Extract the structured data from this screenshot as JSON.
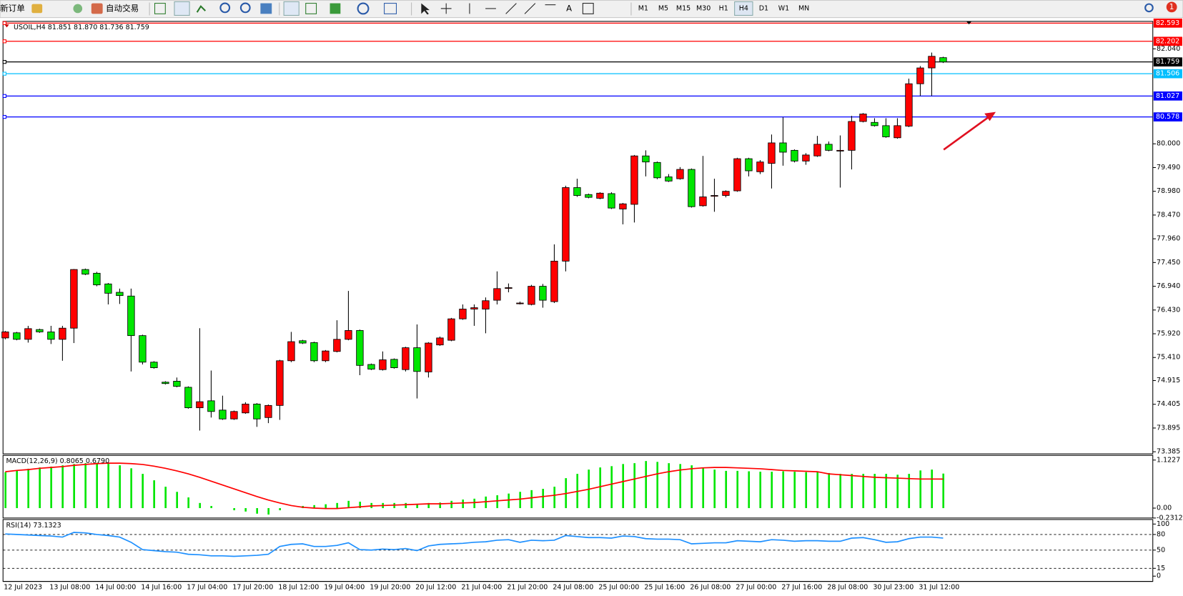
{
  "toolbar": {
    "new_order": "新订单",
    "auto_trading": "自动交易",
    "text_tool": "A",
    "notifications": 1,
    "timeframes": [
      {
        "label": "M1"
      },
      {
        "label": "M5"
      },
      {
        "label": "M15"
      },
      {
        "label": "M30"
      },
      {
        "label": "H1"
      },
      {
        "label": "H4",
        "active": true
      },
      {
        "label": "D1"
      },
      {
        "label": "W1"
      },
      {
        "label": "MN"
      }
    ]
  },
  "chart_data": [
    {
      "type": "candlestick",
      "title": "USOIL,H4  81.851 81.870 81.736 81.759",
      "up_color": "#ff0000",
      "down_color": "#00e600",
      "categories": [
        "12 Jul 2023",
        null,
        null,
        null,
        "13 Jul 08:00",
        null,
        null,
        null,
        "14 Jul 00:00",
        null,
        null,
        null,
        "14 Jul 16:00",
        null,
        null,
        null,
        "17 Jul 04:00",
        null,
        null,
        null,
        "17 Jul 20:00",
        null,
        null,
        null,
        "18 Jul 12:00",
        null,
        null,
        null,
        "19 Jul 04:00",
        null,
        null,
        null,
        "19 Jul 20:00",
        null,
        null,
        null,
        "20 Jul 12:00",
        null,
        null,
        null,
        "21 Jul 04:00",
        null,
        null,
        null,
        "21 Jul 20:00",
        null,
        null,
        null,
        "24 Jul 08:00",
        null,
        null,
        null,
        "25 Jul 00:00",
        null,
        null,
        null,
        "25 Jul 16:00",
        null,
        null,
        null,
        "26 Jul 08:00",
        null,
        null,
        null,
        "27 Jul 00:00",
        null,
        null,
        null,
        "27 Jul 16:00",
        null,
        null,
        null,
        "28 Jul 08:00",
        null,
        null,
        null,
        "30 Jul 23:00",
        null,
        null,
        null,
        "31 Jul 12:00",
        null,
        null
      ],
      "open": [
        75.83,
        75.94,
        75.8,
        76.01,
        75.96,
        75.8,
        76.04,
        77.3,
        77.22,
        76.99,
        76.81,
        76.73,
        75.88,
        75.31,
        74.88,
        74.9,
        74.77,
        74.33,
        74.48,
        74.28,
        74.09,
        74.22,
        74.41,
        74.12,
        74.38,
        75.34,
        75.77,
        75.73,
        75.34,
        75.54,
        75.8,
        75.99,
        75.26,
        75.15,
        75.37,
        75.15,
        75.62,
        75.1,
        75.68,
        75.78,
        76.24,
        76.45,
        76.45,
        76.64,
        76.91,
        76.58,
        76.55,
        76.94,
        76.61,
        77.48,
        79.06,
        78.91,
        78.83,
        78.93,
        78.6,
        78.7,
        79.74,
        79.6,
        79.29,
        79.25,
        79.45,
        78.67,
        78.89,
        78.89,
        78.99,
        79.68,
        79.4,
        79.58,
        80.02,
        79.86,
        79.63,
        79.74,
        79.99,
        79.86,
        79.86,
        80.48,
        80.46,
        80.39,
        80.13,
        80.38,
        81.29,
        81.63,
        81.851
      ],
      "high": [
        75.98,
        75.96,
        76.09,
        76.03,
        76.09,
        76.09,
        77.31,
        77.32,
        77.25,
        77.01,
        76.89,
        76.89,
        75.9,
        75.33,
        74.9,
        74.98,
        74.79,
        76.04,
        75.13,
        74.59,
        74.27,
        74.45,
        74.43,
        74.4,
        75.36,
        75.96,
        75.79,
        75.75,
        75.57,
        76.21,
        76.84,
        76.01,
        75.28,
        75.54,
        75.39,
        75.64,
        76.12,
        75.74,
        75.86,
        76.26,
        76.55,
        76.55,
        76.7,
        77.26,
        77.0,
        76.61,
        76.97,
        76.99,
        77.84,
        79.1,
        79.25,
        78.93,
        78.96,
        78.96,
        78.73,
        79.76,
        79.86,
        79.62,
        79.35,
        79.5,
        79.47,
        79.74,
        79.25,
        79.0,
        79.7,
        79.7,
        79.65,
        80.2,
        80.57,
        79.88,
        79.8,
        80.17,
        80.05,
        80.18,
        80.6,
        80.66,
        80.55,
        80.55,
        80.55,
        81.4,
        81.67,
        81.96,
        81.87
      ],
      "low": [
        75.8,
        75.78,
        75.73,
        75.94,
        75.7,
        75.34,
        75.72,
        77.18,
        76.94,
        76.55,
        76.56,
        75.11,
        75.26,
        75.17,
        74.83,
        74.77,
        74.31,
        73.84,
        74.12,
        74.07,
        74.07,
        74.2,
        73.92,
        74.0,
        74.07,
        75.31,
        75.7,
        75.31,
        75.31,
        75.52,
        75.78,
        75.03,
        75.14,
        75.13,
        75.17,
        75.11,
        74.53,
        74.98,
        75.66,
        75.76,
        76.22,
        76.09,
        75.93,
        76.55,
        76.81,
        76.55,
        76.53,
        76.48,
        76.58,
        77.26,
        78.86,
        78.83,
        78.81,
        78.6,
        78.27,
        78.31,
        79.3,
        79.24,
        79.18,
        79.23,
        78.63,
        78.65,
        78.54,
        78.85,
        78.97,
        79.3,
        79.35,
        79.04,
        79.53,
        79.6,
        79.55,
        79.72,
        79.84,
        79.06,
        79.45,
        80.46,
        80.37,
        80.13,
        80.11,
        80.36,
        81.03,
        81.03,
        81.736
      ],
      "close": [
        75.96,
        75.8,
        76.03,
        75.96,
        75.8,
        76.04,
        77.3,
        77.2,
        76.97,
        76.79,
        76.74,
        75.88,
        75.31,
        75.19,
        74.85,
        74.79,
        74.33,
        74.46,
        74.25,
        74.09,
        74.25,
        74.41,
        74.09,
        74.38,
        75.34,
        75.75,
        75.72,
        75.34,
        75.55,
        75.8,
        75.99,
        75.24,
        75.16,
        75.36,
        75.19,
        75.62,
        75.11,
        75.72,
        75.83,
        76.24,
        76.45,
        76.48,
        76.63,
        76.89,
        76.91,
        76.58,
        76.94,
        76.64,
        77.48,
        79.06,
        78.89,
        78.85,
        78.94,
        78.62,
        78.71,
        79.74,
        79.61,
        79.27,
        79.2,
        79.45,
        78.65,
        78.86,
        78.89,
        78.98,
        79.68,
        79.42,
        79.61,
        80.02,
        79.82,
        79.63,
        79.76,
        79.99,
        79.86,
        79.86,
        80.48,
        80.64,
        80.39,
        80.15,
        80.39,
        81.29,
        81.63,
        81.88,
        81.759
      ],
      "price_lines": [
        {
          "value": 82.593,
          "color": "#ff0000"
        },
        {
          "value": 82.202,
          "color": "#ff0000"
        },
        {
          "value": 81.759,
          "color": "#000000"
        },
        {
          "value": 81.506,
          "color": "#00bfff"
        },
        {
          "value": 81.027,
          "color": "#0000ff"
        },
        {
          "value": 80.578,
          "color": "#0000ff"
        }
      ],
      "ylim": [
        73.34,
        82.63
      ],
      "yticks": [
        {
          "value": 82.04,
          "label": "82.040"
        },
        {
          "value": 80,
          "label": "80.000"
        },
        {
          "value": 79.49,
          "label": "79.490"
        },
        {
          "value": 78.98,
          "label": "78.980"
        },
        {
          "value": 78.47,
          "label": "78.470"
        },
        {
          "value": 77.96,
          "label": "77.960"
        },
        {
          "value": 77.45,
          "label": "77.450"
        },
        {
          "value": 76.94,
          "label": "76.940"
        },
        {
          "value": 76.43,
          "label": "76.430"
        },
        {
          "value": 75.92,
          "label": "75.920"
        },
        {
          "value": 75.41,
          "label": "75.410"
        },
        74.915,
        74.405,
        73.895,
        73.385
      ]
    },
    {
      "type": "macd",
      "title": "MACD(12,26,9) 0.8065 0.6790",
      "histogram": {
        "color": "#00e600",
        "values": [
          0.84,
          0.88,
          0.92,
          0.95,
          0.97,
          1.0,
          1.03,
          1.05,
          1.06,
          1.06,
          1.0,
          0.93,
          0.8,
          0.65,
          0.5,
          0.38,
          0.25,
          0.12,
          0.05,
          0.0,
          -0.05,
          -0.08,
          -0.13,
          -0.15,
          -0.05,
          0.0,
          0.05,
          0.07,
          0.09,
          0.12,
          0.17,
          0.15,
          0.12,
          0.12,
          0.12,
          0.12,
          0.1,
          0.12,
          0.13,
          0.17,
          0.2,
          0.22,
          0.27,
          0.3,
          0.34,
          0.38,
          0.42,
          0.45,
          0.5,
          0.7,
          0.8,
          0.9,
          0.95,
          0.98,
          1.03,
          1.05,
          1.1,
          1.08,
          1.05,
          1.03,
          1.0,
          0.95,
          0.9,
          0.87,
          0.87,
          0.86,
          0.85,
          0.85,
          0.86,
          0.85,
          0.84,
          0.84,
          0.82,
          0.8,
          0.8,
          0.8,
          0.8,
          0.8,
          0.78,
          0.8,
          0.88,
          0.9,
          0.8065
        ]
      },
      "signal": {
        "color": "#ff0000",
        "values": [
          0.85,
          0.88,
          0.9,
          0.93,
          0.95,
          0.97,
          1.0,
          1.02,
          1.04,
          1.05,
          1.05,
          1.04,
          1.02,
          0.98,
          0.93,
          0.87,
          0.8,
          0.72,
          0.63,
          0.54,
          0.45,
          0.36,
          0.27,
          0.19,
          0.12,
          0.06,
          0.02,
          0.0,
          -0.01,
          -0.01,
          0.01,
          0.03,
          0.05,
          0.06,
          0.07,
          0.08,
          0.09,
          0.1,
          0.1,
          0.11,
          0.12,
          0.13,
          0.15,
          0.17,
          0.19,
          0.21,
          0.24,
          0.27,
          0.3,
          0.34,
          0.39,
          0.44,
          0.5,
          0.56,
          0.62,
          0.68,
          0.74,
          0.8,
          0.85,
          0.89,
          0.92,
          0.94,
          0.95,
          0.95,
          0.94,
          0.93,
          0.92,
          0.9,
          0.88,
          0.87,
          0.86,
          0.85,
          0.8,
          0.78,
          0.76,
          0.74,
          0.72,
          0.71,
          0.7,
          0.69,
          0.68,
          0.68,
          0.679
        ]
      },
      "ylim": [
        -0.2312,
        1.2322
      ],
      "yticks": [
        1.1227,
        {
          "value": 0,
          "label": "0.00"
        },
        -0.2312
      ]
    },
    {
      "type": "line",
      "title": "RSI(14) 73.1323",
      "color": "#1e90ff",
      "values": [
        81,
        80,
        79,
        78,
        77,
        75,
        84,
        83,
        80,
        78,
        75,
        65,
        51,
        49,
        47,
        46,
        42,
        41,
        39,
        39,
        38,
        39,
        40,
        42,
        57,
        61,
        62,
        57,
        57,
        59,
        64,
        51,
        50,
        52,
        51,
        53,
        49,
        58,
        61,
        62,
        63,
        65,
        66,
        69,
        70,
        65,
        69,
        68,
        69,
        78,
        76,
        74,
        74,
        73,
        77,
        76,
        72,
        71,
        71,
        70,
        62,
        63,
        64,
        64,
        68,
        67,
        66,
        70,
        69,
        67,
        68,
        68,
        67,
        67,
        73,
        74,
        70,
        65,
        66,
        72,
        75,
        75,
        73.1323
      ],
      "levels": [
        80,
        50,
        15
      ],
      "ylim": [
        -10.1,
        108.7
      ],
      "yticks": [
        100,
        80,
        50,
        15,
        0
      ]
    }
  ]
}
